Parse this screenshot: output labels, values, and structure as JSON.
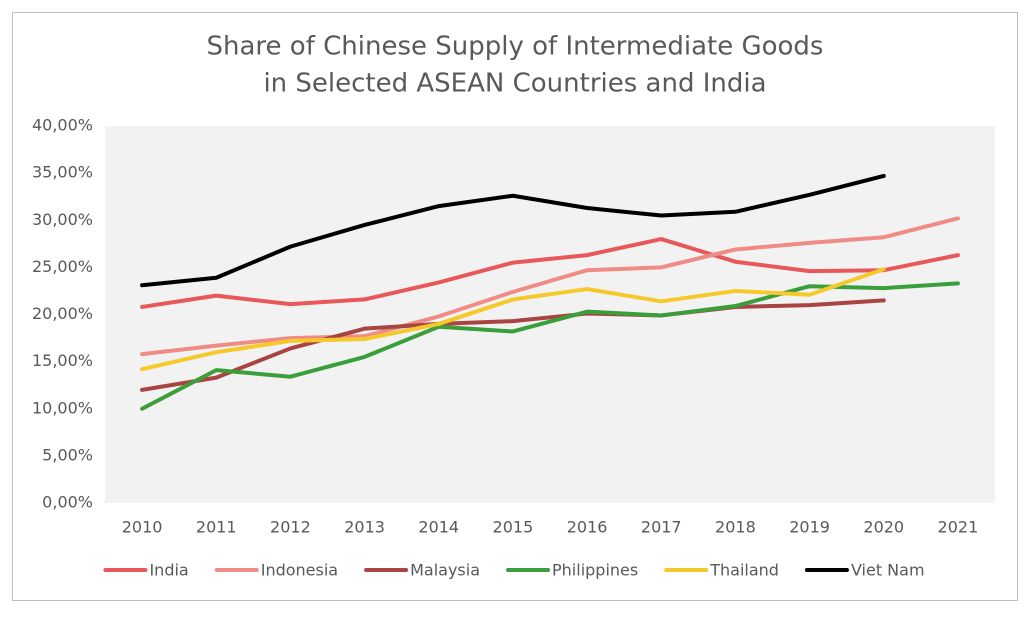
{
  "chart_data": {
    "type": "line",
    "title": [
      "Share of Chinese Supply of Intermediate Goods",
      "in Selected ASEAN Countries and India"
    ],
    "categories": [
      "2010",
      "2011",
      "2012",
      "2013",
      "2014",
      "2015",
      "2016",
      "2017",
      "2018",
      "2019",
      "2020",
      "2021"
    ],
    "series": [
      {
        "name": "India",
        "color": "#e8585a",
        "values": [
          20.8,
          22.0,
          21.1,
          21.6,
          23.4,
          25.5,
          26.3,
          28.0,
          25.6,
          24.6,
          24.7,
          26.3
        ]
      },
      {
        "name": "Indonesia",
        "color": "#f08c86",
        "values": [
          15.8,
          16.7,
          17.5,
          17.7,
          19.8,
          22.4,
          24.7,
          25.0,
          26.9,
          27.6,
          28.2,
          30.2
        ]
      },
      {
        "name": "Malaysia",
        "color": "#a94443",
        "values": [
          12.0,
          13.3,
          16.4,
          18.5,
          19.0,
          19.3,
          20.1,
          19.9,
          20.8,
          21.0,
          21.5,
          null
        ]
      },
      {
        "name": "Philippines",
        "color": "#3a9f3a",
        "values": [
          10.0,
          14.1,
          13.4,
          15.5,
          18.7,
          18.2,
          20.3,
          19.9,
          20.9,
          23.0,
          22.8,
          23.3
        ]
      },
      {
        "name": "Thailand",
        "color": "#f5c92a",
        "values": [
          14.2,
          16.0,
          17.2,
          17.4,
          19.0,
          21.6,
          22.7,
          21.4,
          22.5,
          22.1,
          24.8,
          null
        ]
      },
      {
        "name": "Viet Nam",
        "color": "#000000",
        "values": [
          23.1,
          23.9,
          27.2,
          29.5,
          31.5,
          32.6,
          31.3,
          30.5,
          30.9,
          32.7,
          34.7,
          null
        ]
      }
    ],
    "ylim": [
      0,
      40
    ],
    "yticks": [
      {
        "value": 0,
        "label": "0,00%"
      },
      {
        "value": 5,
        "label": "5,00%"
      },
      {
        "value": 10,
        "label": "10,00%"
      },
      {
        "value": 15,
        "label": "15,00%"
      },
      {
        "value": 20,
        "label": "20,00%"
      },
      {
        "value": 25,
        "label": "25,00%"
      },
      {
        "value": 30,
        "label": "30,00%"
      },
      {
        "value": 35,
        "label": "35,00%"
      },
      {
        "value": 40,
        "label": "40,00%"
      }
    ],
    "grid": false,
    "legend": "bottom"
  }
}
